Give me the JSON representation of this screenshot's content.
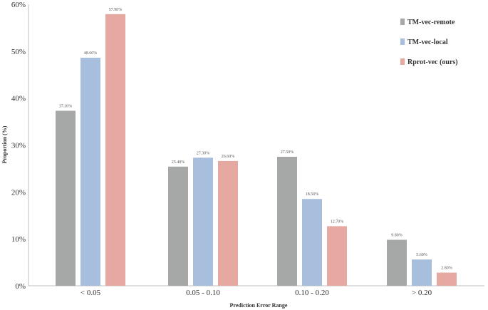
{
  "chart_data": {
    "type": "bar",
    "categories": [
      "< 0.05",
      "0.05 - 0.10",
      "0.10 - 0.20",
      "> 0.20"
    ],
    "series": [
      {
        "name": "TM-vec-remote",
        "color": "#a5a8a6",
        "values": [
          37.3,
          25.4,
          27.5,
          9.8
        ],
        "labels": [
          "37.30%",
          "25.40%",
          "27.50%",
          "9.80%"
        ]
      },
      {
        "name": "TM-vec-local",
        "color": "#a7bfdc",
        "values": [
          48.6,
          27.3,
          18.5,
          5.6
        ],
        "labels": [
          "48.60%",
          "27.30%",
          "18.50%",
          "5.60%"
        ]
      },
      {
        "name": "Rprot-vec (ours)",
        "color": "#e5a9a2",
        "values": [
          57.9,
          26.6,
          12.7,
          2.8
        ],
        "labels": [
          "57.90%",
          "26.60%",
          "12.70%",
          "2.80%"
        ]
      }
    ],
    "xlabel": "Prediction Error Range",
    "ylabel": "Proportion (%)",
    "ylim": [
      0,
      60
    ],
    "yticks": [
      0,
      10,
      20,
      30,
      40,
      50,
      60
    ],
    "ytick_labels": [
      "0%",
      "10%",
      "20%",
      "30%",
      "40%",
      "50%",
      "60%"
    ],
    "grid": false,
    "legend_position": "top-right"
  }
}
